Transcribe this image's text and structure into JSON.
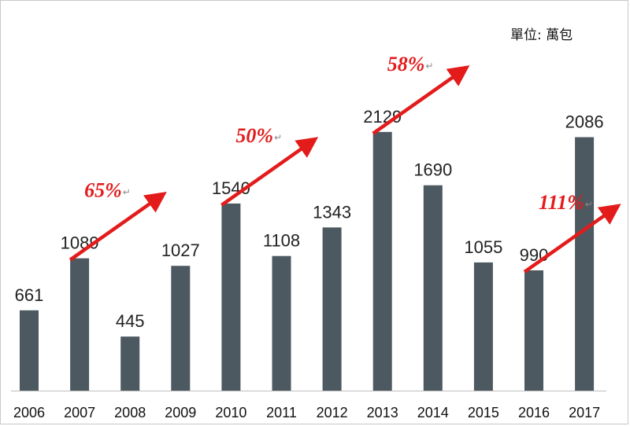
{
  "unit_label": "單位: 萬包",
  "chart_data": {
    "type": "bar",
    "categories": [
      "2006",
      "2007",
      "2008",
      "2009",
      "2010",
      "2011",
      "2012",
      "2013",
      "2014",
      "2015",
      "2016",
      "2017"
    ],
    "values": [
      661,
      1089,
      445,
      1027,
      1540,
      1108,
      1343,
      2129,
      1690,
      1055,
      990,
      2086
    ],
    "ylim": [
      0,
      2600
    ],
    "bar_color": "#4d5960",
    "annotations": [
      {
        "text": "65%",
        "from_year": "2007",
        "to_year": "2008"
      },
      {
        "text": "50%",
        "from_year": "2010",
        "to_year": "2011"
      },
      {
        "text": "58%",
        "from_year": "2013",
        "to_year": "2014"
      },
      {
        "text": "111%",
        "from_year": "2016",
        "to_year": "2017"
      }
    ],
    "annotation_color": "#e31b1b",
    "grid": false,
    "legend": "none"
  }
}
